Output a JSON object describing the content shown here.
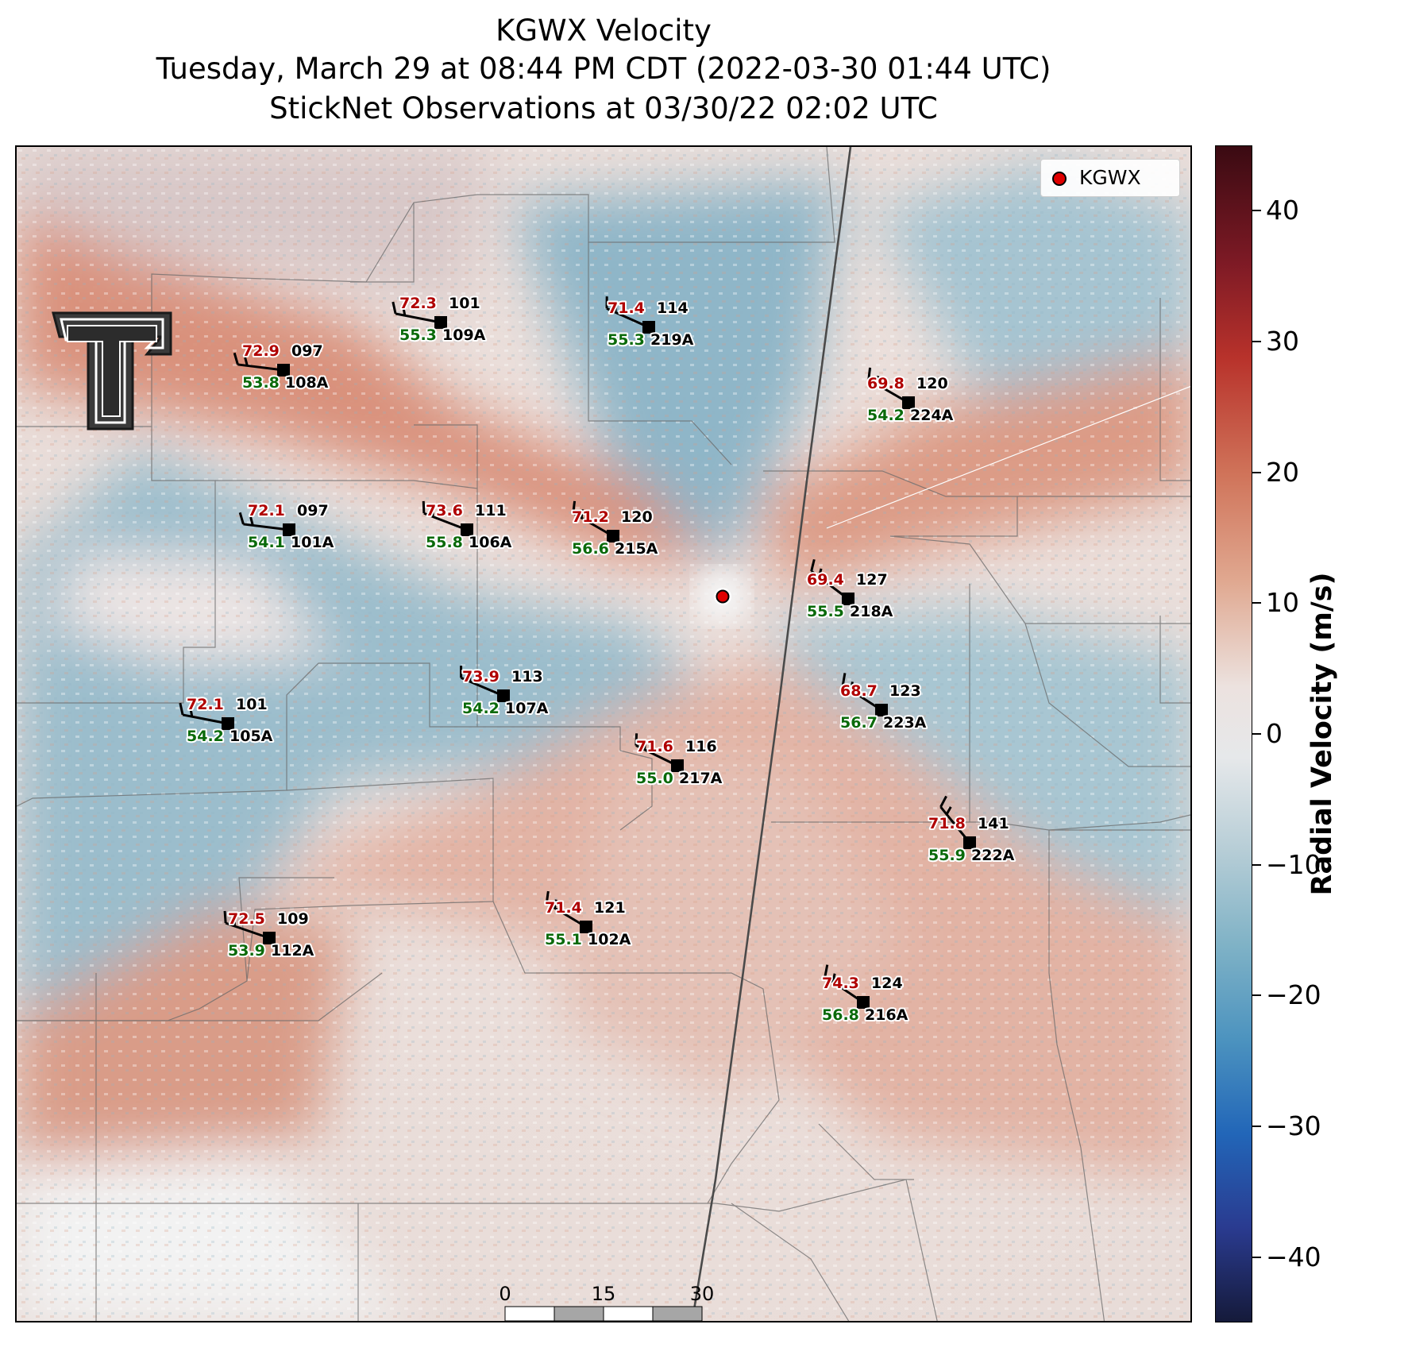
{
  "title_line1": "KGWX Velocity",
  "title_line2": "Tuesday, March 29 at 08:44 PM CDT (2022-03-30 01:44 UTC)",
  "title_line3": "StickNet Observations at 03/30/22 02:02 UTC",
  "legend_label": "KGWX",
  "colorbar": {
    "label": "Radial Velocity (m/s)",
    "ticks": [
      "40",
      "30",
      "20",
      "10",
      "0",
      "−10",
      "−20",
      "−30",
      "−40"
    ],
    "range": [
      -45,
      45
    ],
    "colors": {
      "max": "#3a0a12",
      "red": "#b8322b",
      "neutral": "#e8e6e6",
      "blue": "#2266b8",
      "min": "#151a3a"
    }
  },
  "scalebar": {
    "ticks": [
      "0",
      "15",
      "30"
    ],
    "unit": "km"
  },
  "stations": [
    {
      "id": "109A",
      "temp": "72.3",
      "dew": "55.3",
      "dir": "101"
    },
    {
      "id": "219A",
      "temp": "71.4",
      "dew": "55.3",
      "dir": "114"
    },
    {
      "id": "108A",
      "temp": "72.9",
      "dew": "53.8",
      "dir": "097"
    },
    {
      "id": "224A",
      "temp": "69.8",
      "dew": "54.2",
      "dir": "120"
    },
    {
      "id": "101A",
      "temp": "72.1",
      "dew": "54.1",
      "dir": "097"
    },
    {
      "id": "106A",
      "temp": "73.6",
      "dew": "55.8",
      "dir": "111"
    },
    {
      "id": "215A",
      "temp": "71.2",
      "dew": "56.6",
      "dir": "120"
    },
    {
      "id": "218A",
      "temp": "69.4",
      "dew": "55.5",
      "dir": "127"
    },
    {
      "id": "107A",
      "temp": "73.9",
      "dew": "54.2",
      "dir": "113"
    },
    {
      "id": "223A",
      "temp": "68.7",
      "dew": "56.7",
      "dir": "123"
    },
    {
      "id": "105A",
      "temp": "72.1",
      "dew": "54.2",
      "dir": "101"
    },
    {
      "id": "217A",
      "temp": "71.6",
      "dew": "55.0",
      "dir": "116"
    },
    {
      "id": "222A",
      "temp": "71.8",
      "dew": "55.9",
      "dir": "141"
    },
    {
      "id": "112A",
      "temp": "72.5",
      "dew": "53.9",
      "dir": "109"
    },
    {
      "id": "102A",
      "temp": "71.4",
      "dew": "55.1",
      "dir": "121"
    },
    {
      "id": "216A",
      "temp": "74.3",
      "dew": "56.8",
      "dir": "124"
    }
  ]
}
